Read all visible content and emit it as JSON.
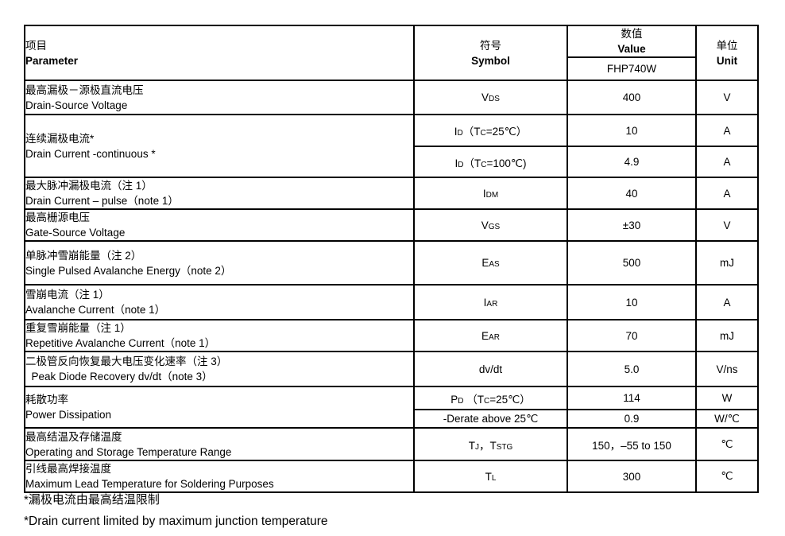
{
  "table": {
    "header": {
      "param_zh": "项目",
      "param_en": "Parameter",
      "symbol_zh": "符号",
      "symbol_en": "Symbol",
      "value_zh": "数值",
      "value_en": "Value",
      "value_device": "FHP740W",
      "unit_zh": "单位",
      "unit_en": "Unit"
    },
    "rows": [
      {
        "param_zh": "最高漏极－源极直流电压",
        "param_en": "Drain-Source Voltage",
        "symbol": "V{DS}",
        "value": "400",
        "unit": "V"
      },
      {
        "param_zh": "连续漏极电流*",
        "param_en": "Drain Current -continuous *",
        "symbol": "I{D}（T{C}=25℃）",
        "value": "10",
        "unit": "A"
      },
      {
        "symbol": "I{D}（T{C}=100℃)",
        "value": "4.9",
        "unit": "A"
      },
      {
        "param_zh": "最大脉冲漏极电流（注 1）",
        "param_en": "Drain Current – pulse（note 1）",
        "symbol": "I{DM}",
        "value": "40",
        "unit": "A"
      },
      {
        "param_zh": "最高栅源电压",
        "param_en": "Gate-Source Voltage",
        "symbol": "V{GS}",
        "value": "±30",
        "unit": "V"
      },
      {
        "param_zh": "单脉冲雪崩能量（注 2）",
        "param_en": "Single Pulsed Avalanche Energy（note 2）",
        "symbol": "E{AS}",
        "value": "500",
        "unit": "mJ"
      },
      {
        "param_zh": "雪崩电流（注 1）",
        "param_en": "Avalanche Current（note 1）",
        "symbol": "I{AR}",
        "value": "10",
        "unit": "A"
      },
      {
        "param_zh": "重复雪崩能量（注 1）",
        "param_en": "Repetitive Avalanche Current（note 1）",
        "symbol": "E{AR}",
        "value": "70",
        "unit": "mJ"
      },
      {
        "param_zh": "二极管反向恢复最大电压变化速率（注 3）",
        "param_en": "  Peak Diode Recovery dv/dt（note 3）",
        "symbol": "dv/dt",
        "value": "5.0",
        "unit": "V/ns"
      },
      {
        "param_zh": "耗散功率",
        "param_en": "Power Dissipation",
        "symbol": "P{D} （T{C}=25℃）",
        "value": "114",
        "unit": "W"
      },
      {
        "symbol": "-Derate above 25℃",
        "value": "0.9",
        "unit": "W/℃"
      },
      {
        "param_zh": "最高结温及存储温度",
        "param_en": "Operating and Storage Temperature Range",
        "symbol": "T{J}，T{STG}",
        "value": "150，–55 to 150",
        "unit": "℃"
      },
      {
        "param_zh": "引线最高焊接温度",
        "param_en": "Maximum Lead Temperature for Soldering Purposes",
        "symbol": "T{L}",
        "value": "300",
        "unit": "℃"
      }
    ]
  },
  "footnotes": {
    "zh": "*漏极电流由最高结温限制",
    "en": "*Drain current limited by maximum junction temperature"
  }
}
